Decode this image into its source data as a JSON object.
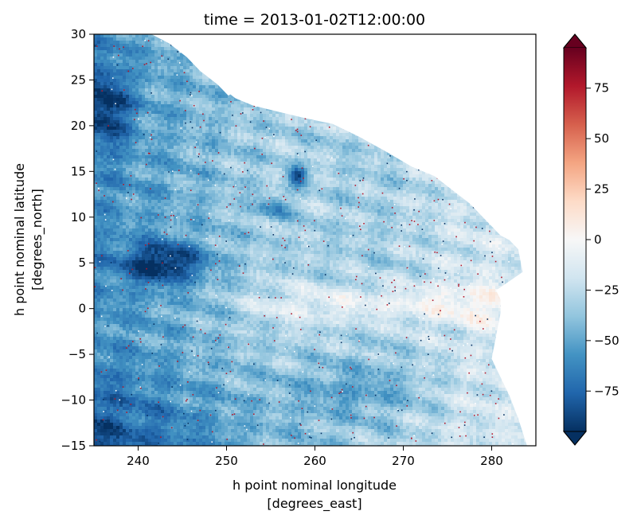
{
  "chart_data": {
    "type": "heatmap",
    "title": "time = 2013-01-02T12:00:00",
    "xlabel_line1": "h point nominal longitude",
    "xlabel_line2": "[degrees_east]",
    "ylabel_line1": "h point nominal latitude",
    "ylabel_line2": "[degrees_north]",
    "xlim": [
      235,
      285
    ],
    "ylim": [
      -15,
      30
    ],
    "x_ticks": [
      240,
      250,
      260,
      270,
      280
    ],
    "x_tick_labels": [
      "240",
      "250",
      "260",
      "270",
      "280"
    ],
    "y_ticks": [
      -15,
      -10,
      -5,
      0,
      5,
      10,
      15,
      20,
      25,
      30
    ],
    "y_tick_labels": [
      "−15",
      "−10",
      "−5",
      "0",
      "5",
      "10",
      "15",
      "20",
      "25",
      "30"
    ],
    "colorbar": {
      "colormap": "RdBu_r",
      "vmin": -95,
      "vmax": 95,
      "extend": "both",
      "ticks": [
        -75,
        -50,
        -25,
        0,
        25,
        50,
        75
      ],
      "tick_labels": [
        "−75",
        "−50",
        "−25",
        "0",
        "25",
        "50",
        "75"
      ],
      "low_color": "#053061",
      "high_color": "#67001f"
    },
    "land_color": "#ffffff",
    "coastline_lon_lat": [
      [
        241.5,
        30
      ],
      [
        243.5,
        29
      ],
      [
        245.5,
        27.5
      ],
      [
        247,
        26
      ],
      [
        249,
        24.5
      ],
      [
        251,
        23
      ],
      [
        253,
        22.2
      ],
      [
        256,
        21.5
      ],
      [
        259,
        20.8
      ],
      [
        262,
        20.2
      ],
      [
        265,
        18.8
      ],
      [
        268,
        17.2
      ],
      [
        271,
        15.5
      ],
      [
        273.5,
        14.5
      ],
      [
        275.5,
        13
      ],
      [
        277.5,
        11.5
      ],
      [
        279.5,
        9.5
      ],
      [
        281,
        8
      ],
      [
        282,
        7.5
      ],
      [
        283,
        6.5
      ],
      [
        283.5,
        4
      ],
      [
        282,
        3
      ],
      [
        280.5,
        2
      ],
      [
        281,
        1
      ],
      [
        281,
        -0.5
      ],
      [
        280.5,
        -3
      ],
      [
        280,
        -5.5
      ],
      [
        281,
        -7.5
      ],
      [
        282,
        -9.5
      ],
      [
        283,
        -12
      ],
      [
        284,
        -15
      ]
    ],
    "baja_lon_lat": [
      [
        246.5,
        30
      ],
      [
        247,
        28.5
      ],
      [
        248.5,
        27
      ],
      [
        250,
        25
      ],
      [
        250.6,
        23.5
      ],
      [
        250.2,
        23.3
      ],
      [
        249,
        24.5
      ],
      [
        248,
        26
      ],
      [
        246.5,
        27.5
      ],
      [
        245.5,
        29
      ],
      [
        245.3,
        30
      ]
    ]
  }
}
